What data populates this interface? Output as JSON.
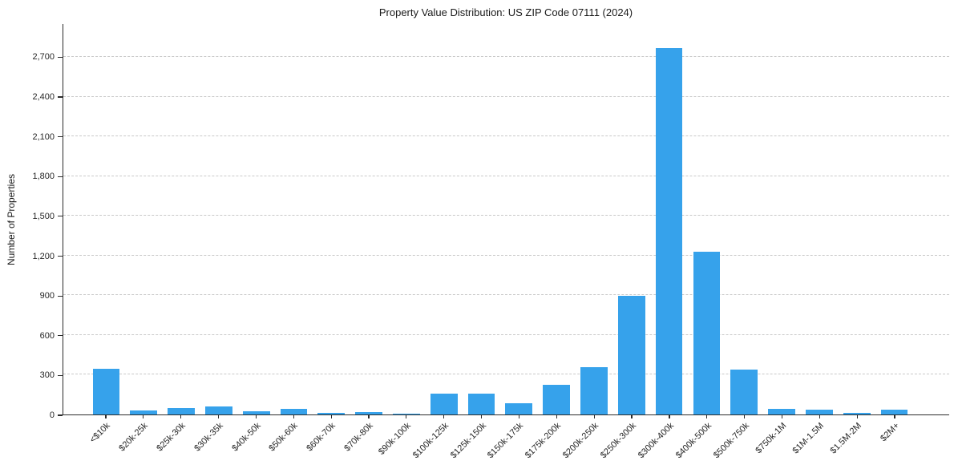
{
  "chart_data": {
    "type": "bar",
    "title": "Property Value Distribution: US ZIP Code 07111 (2024)",
    "xlabel": "",
    "ylabel": "Number of Properties",
    "categories": [
      "<$10k",
      "$20k-25k",
      "$25k-30k",
      "$30k-35k",
      "$40k-50k",
      "$50k-60k",
      "$60k-70k",
      "$70k-80k",
      "$90k-100k",
      "$100k-125k",
      "$125k-150k",
      "$150k-175k",
      "$175k-200k",
      "$200k-250k",
      "$250k-300k",
      "$300k-400k",
      "$400k-500k",
      "$500k-750k",
      "$750k-1M",
      "$1M-1.5M",
      "$1.5M-2M",
      "$2M+"
    ],
    "values": [
      345,
      30,
      48,
      60,
      25,
      45,
      15,
      20,
      5,
      155,
      160,
      85,
      225,
      360,
      895,
      2770,
      1230,
      340,
      45,
      35,
      10,
      35
    ],
    "ylim": [
      0,
      2950
    ],
    "yticks": [
      0,
      300,
      600,
      900,
      1200,
      1500,
      1800,
      2100,
      2400,
      2700
    ],
    "ytick_labels": [
      "0",
      "300",
      "600",
      "900",
      "1,200",
      "1,500",
      "1,800",
      "2,100",
      "2,400",
      "2,700"
    ],
    "grid": "horizontal-dashed",
    "gridline_color": "#c9c9c9",
    "bar_color": "#36A2EB",
    "legend_position": "none",
    "x_tick_rotation": 45
  }
}
